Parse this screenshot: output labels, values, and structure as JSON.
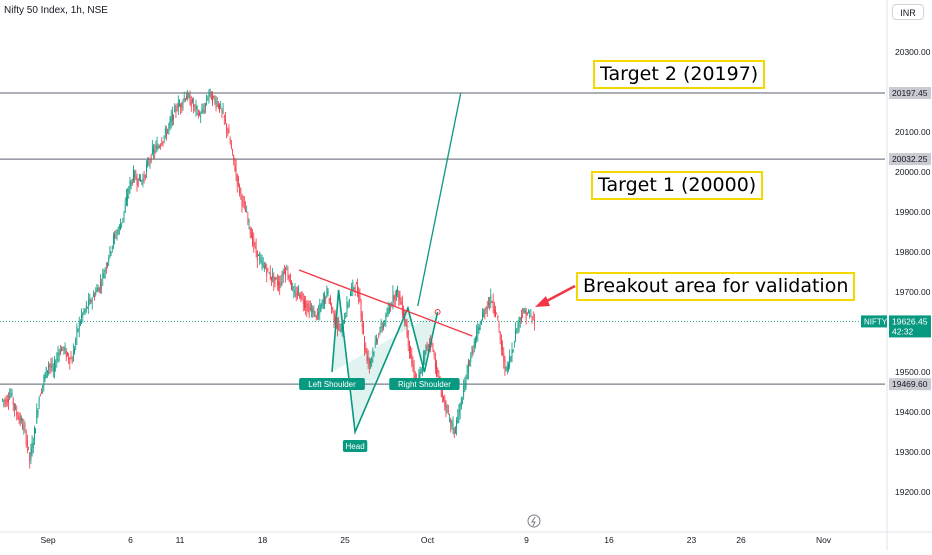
{
  "header": {
    "title": "Nifty 50 Index, 1h, NSE",
    "currency": "INR"
  },
  "chart_data": {
    "type": "candlestick",
    "symbol": "NIFTY",
    "ylim": [
      19150,
      20380
    ],
    "y_ticks": [
      19200,
      19300,
      19400,
      19500,
      19600,
      19700,
      19800,
      19900,
      20000,
      20100,
      20200,
      20300
    ],
    "y_tick_labels": [
      "19200.00",
      "19300.00",
      "19400.00",
      "19500.00",
      "19600.00",
      "19700.00",
      "19800.00",
      "19900.00",
      "20000.00",
      "20100.00",
      "20200.00",
      "20300.00"
    ],
    "x_tick_labels": [
      {
        "label": "Sep",
        "x": 0
      },
      {
        "label": "6",
        "x": 5
      },
      {
        "label": "11",
        "x": 8
      },
      {
        "label": "18",
        "x": 13
      },
      {
        "label": "25",
        "x": 18
      },
      {
        "label": "Oct",
        "x": 23
      },
      {
        "label": "9",
        "x": 29
      },
      {
        "label": "16",
        "x": 34
      },
      {
        "label": "23",
        "x": 39
      },
      {
        "label": "26",
        "x": 42
      },
      {
        "label": "Nov",
        "x": 47
      }
    ],
    "session_closes": [
      19430,
      19445,
      19400,
      19380,
      19350,
      19280,
      19350,
      19440,
      19480,
      19520,
      19500,
      19550,
      19560,
      19540,
      19530,
      19600,
      19640,
      19660,
      19680,
      19700,
      19720,
      19760,
      19800,
      19840,
      19860,
      19900,
      19960,
      19990,
      19980,
      19980,
      20020,
      20050,
      20060,
      20080,
      20100,
      20130,
      20160,
      20170,
      20190,
      20180,
      20160,
      20140,
      20160,
      20200,
      20180,
      20170,
      20140,
      20100,
      20040,
      19980,
      19930,
      19890,
      19840,
      19800,
      19770,
      19760,
      19740,
      19730,
      19720,
      19760,
      19740,
      19690,
      19700,
      19680,
      19660,
      19650,
      19640,
      19670,
      19700,
      19660,
      19620,
      19600,
      19650,
      19700,
      19720,
      19680,
      19560,
      19520,
      19560,
      19600,
      19620,
      19650,
      19690,
      19700,
      19660,
      19600,
      19520,
      19470,
      19500,
      19560,
      19580,
      19520,
      19460,
      19420,
      19380,
      19350,
      19400,
      19450,
      19520,
      19560,
      19600,
      19640,
      19670,
      19680,
      19640,
      19560,
      19500,
      19540,
      19600,
      19640,
      19650,
      19640,
      19626
    ],
    "horizontal_levels": [
      {
        "value": 20197.45,
        "label": "20197.45"
      },
      {
        "value": 20032.25,
        "label": "20032.25"
      },
      {
        "value": 19469.6,
        "label": "19469.60"
      }
    ],
    "last_price": {
      "symbol": "NIFTY",
      "value": 19626.45,
      "label": "19626.45",
      "countdown": "42:32"
    },
    "pattern": {
      "left_shoulder": {
        "x": 20.0,
        "value": 19500
      },
      "neck_left": {
        "x": 20.4,
        "value": 19705
      },
      "head": {
        "x": 21.4,
        "value": 19350
      },
      "neck_right": {
        "x": 24.6,
        "value": 19660
      },
      "right_shoulder": {
        "x": 25.6,
        "value": 19500
      },
      "neck_end": {
        "x": 26.4,
        "value": 19650
      },
      "labels": {
        "left_shoulder": "Left Shoulder",
        "head": "Head",
        "right_shoulder": "Right Shoulder"
      }
    },
    "trendline": {
      "x1": 18.0,
      "y1": 19755,
      "x2": 28.5,
      "y2": 19590
    },
    "projection": {
      "x1": 25.2,
      "y1": 19665,
      "x2": 27.8,
      "y2": 20197
    },
    "annotations": {
      "target2": "Target 2 (20197)",
      "target1": "Target 1 (20000)",
      "breakout": "Breakout area for validation"
    }
  }
}
